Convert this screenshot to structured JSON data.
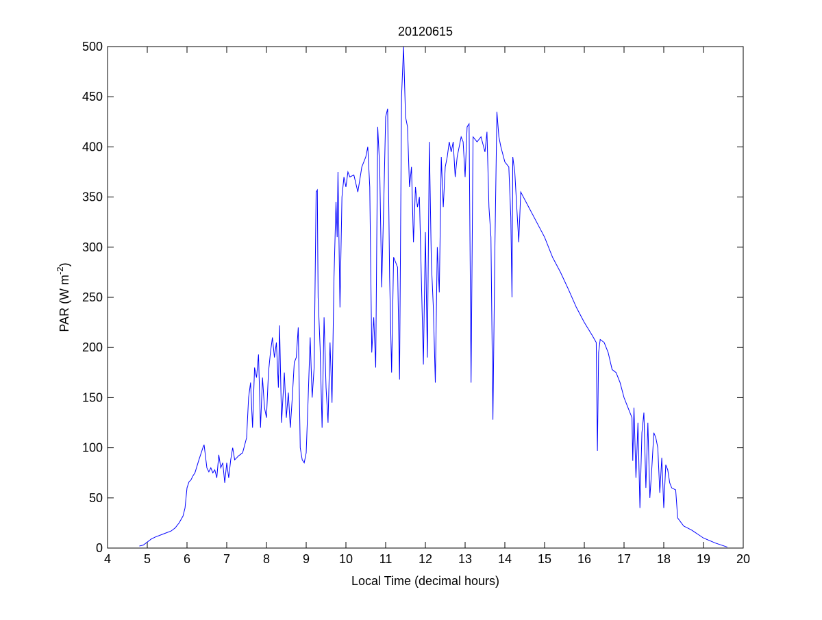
{
  "chart_data": {
    "type": "line",
    "title": "20120615",
    "xlabel": "Local Time (decimal hours)",
    "ylabel": [
      "PAR (W m",
      "-2",
      ")"
    ],
    "xlim": [
      4,
      20
    ],
    "xticks": [
      4,
      5,
      6,
      7,
      8,
      9,
      10,
      11,
      12,
      13,
      14,
      15,
      16,
      17,
      18,
      19,
      20
    ],
    "ylim": [
      0,
      500
    ],
    "yticks": [
      0,
      50,
      100,
      150,
      200,
      250,
      300,
      350,
      400,
      450,
      500
    ],
    "grid": false,
    "box": true,
    "x": [
      4.8,
      4.9,
      5.0,
      5.1,
      5.2,
      5.4,
      5.6,
      5.7,
      5.8,
      5.9,
      5.95,
      6.0,
      6.05,
      6.1,
      6.15,
      6.2,
      6.3,
      6.4,
      6.43,
      6.5,
      6.55,
      6.6,
      6.65,
      6.7,
      6.75,
      6.8,
      6.85,
      6.9,
      6.95,
      7.0,
      7.05,
      7.1,
      7.15,
      7.2,
      7.3,
      7.4,
      7.5,
      7.55,
      7.6,
      7.65,
      7.7,
      7.75,
      7.8,
      7.85,
      7.9,
      7.95,
      8.0,
      8.05,
      8.1,
      8.15,
      8.2,
      8.25,
      8.3,
      8.33,
      8.38,
      8.45,
      8.5,
      8.55,
      8.6,
      8.65,
      8.7,
      8.75,
      8.8,
      8.85,
      8.9,
      8.95,
      9.0,
      9.05,
      9.1,
      9.15,
      9.2,
      9.25,
      9.28,
      9.3,
      9.35,
      9.4,
      9.45,
      9.5,
      9.55,
      9.6,
      9.65,
      9.7,
      9.75,
      9.78,
      9.8,
      9.85,
      9.9,
      9.95,
      10.0,
      10.05,
      10.1,
      10.2,
      10.3,
      10.4,
      10.5,
      10.55,
      10.6,
      10.65,
      10.7,
      10.75,
      10.8,
      10.85,
      10.9,
      10.95,
      11.0,
      11.05,
      11.1,
      11.15,
      11.2,
      11.3,
      11.35,
      11.4,
      11.45,
      11.5,
      11.55,
      11.6,
      11.65,
      11.7,
      11.75,
      11.8,
      11.85,
      11.95,
      12.0,
      12.05,
      12.1,
      12.15,
      12.2,
      12.25,
      12.3,
      12.35,
      12.4,
      12.45,
      12.5,
      12.55,
      12.6,
      12.65,
      12.7,
      12.75,
      12.8,
      12.9,
      12.95,
      13.0,
      13.05,
      13.1,
      13.15,
      13.2,
      13.3,
      13.4,
      13.5,
      13.55,
      13.6,
      13.65,
      13.7,
      13.75,
      13.8,
      13.85,
      13.9,
      14.0,
      14.1,
      14.15,
      14.18,
      14.2,
      14.25,
      14.3,
      14.35,
      14.4,
      14.6,
      14.8,
      15.0,
      15.2,
      15.4,
      15.6,
      15.8,
      16.0,
      16.2,
      16.3,
      16.33,
      16.36,
      16.4,
      16.5,
      16.6,
      16.7,
      16.8,
      16.9,
      17.0,
      17.1,
      17.2,
      17.22,
      17.25,
      17.3,
      17.35,
      17.4,
      17.45,
      17.5,
      17.55,
      17.6,
      17.65,
      17.7,
      17.75,
      17.8,
      17.85,
      17.9,
      17.95,
      18.0,
      18.05,
      18.1,
      18.15,
      18.2,
      18.3,
      18.35,
      18.5,
      18.7,
      19.0,
      19.3,
      19.6
    ],
    "series": [
      {
        "color": "#0000ff",
        "values": [
          2,
          3,
          6,
          9,
          11,
          14,
          17,
          20,
          25,
          32,
          40,
          60,
          66,
          68,
          72,
          75,
          88,
          100,
          103,
          80,
          76,
          80,
          75,
          78,
          70,
          93,
          80,
          85,
          65,
          85,
          70,
          88,
          100,
          88,
          92,
          95,
          110,
          150,
          165,
          120,
          180,
          170,
          193,
          120,
          170,
          140,
          130,
          175,
          195,
          210,
          190,
          205,
          160,
          222,
          125,
          175,
          130,
          155,
          120,
          150,
          185,
          190,
          220,
          100,
          88,
          85,
          95,
          150,
          210,
          150,
          180,
          355,
          357,
          250,
          200,
          120,
          230,
          160,
          125,
          205,
          145,
          270,
          345,
          310,
          375,
          240,
          350,
          370,
          360,
          375,
          370,
          372,
          355,
          380,
          390,
          400,
          360,
          195,
          230,
          180,
          420,
          380,
          260,
          340,
          430,
          438,
          270,
          175,
          290,
          280,
          168,
          450,
          500,
          430,
          420,
          360,
          380,
          305,
          360,
          340,
          350,
          183,
          315,
          190,
          405,
          285,
          240,
          165,
          300,
          255,
          390,
          340,
          380,
          390,
          405,
          395,
          405,
          370,
          390,
          410,
          405,
          370,
          420,
          423,
          165,
          410,
          405,
          410,
          395,
          415,
          340,
          310,
          128,
          300,
          435,
          410,
          400,
          385,
          380,
          330,
          250,
          390,
          375,
          340,
          305,
          355,
          340,
          325,
          310,
          290,
          275,
          258,
          240,
          225,
          212,
          205,
          97,
          195,
          208,
          205,
          195,
          178,
          175,
          165,
          150,
          140,
          130,
          87,
          140,
          70,
          125,
          40,
          115,
          135,
          60,
          125,
          50,
          80,
          115,
          110,
          100,
          55,
          90,
          40,
          83,
          78,
          65,
          60,
          58,
          30,
          22,
          18,
          10,
          5,
          1
        ]
      }
    ]
  }
}
